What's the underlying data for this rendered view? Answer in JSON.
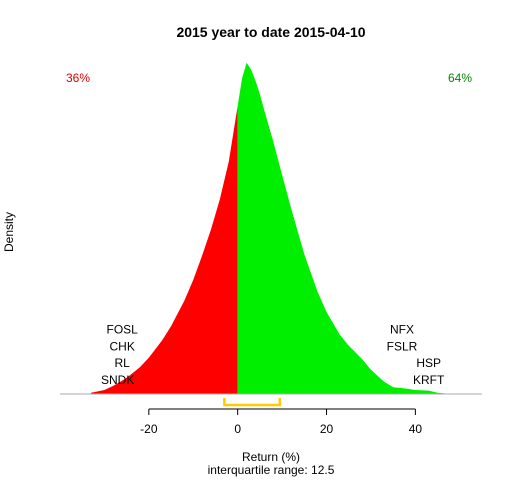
{
  "chart_data": {
    "type": "area",
    "title": "2015  year to date 2015-04-10",
    "xlabel": "Return (%)",
    "ylabel": "Density",
    "subtitle": "interquartile range: 12.5",
    "xlim": [
      -40,
      55
    ],
    "ylim": [
      0,
      0.05
    ],
    "x_ticks": [
      -20,
      0,
      20,
      40
    ],
    "x_tick_labels": [
      "-20",
      "0",
      "20",
      "40"
    ],
    "grid": false,
    "split_at": 0,
    "negative_share": "36%",
    "positive_share": "64%",
    "colors": {
      "negative": "#ff0000",
      "positive": "#00ee00",
      "negative_text": "#dd0000",
      "positive_text": "#008800",
      "iqr": "#ffcc00",
      "baseline": "#aaaaaa"
    },
    "iqr": [
      -3,
      9.5
    ],
    "density": {
      "x": [
        -33,
        -30,
        -28,
        -25,
        -22,
        -20,
        -17,
        -15,
        -12,
        -10,
        -8,
        -6,
        -4,
        -2,
        -1,
        0,
        1,
        2,
        3,
        4,
        5,
        6,
        8,
        10,
        12,
        15,
        18,
        20,
        23,
        25,
        28,
        30,
        33,
        35,
        38,
        40,
        43,
        45,
        48
      ],
      "y": [
        0.0002,
        0.0006,
        0.0012,
        0.0024,
        0.004,
        0.0054,
        0.008,
        0.0101,
        0.0139,
        0.017,
        0.0206,
        0.0245,
        0.029,
        0.0346,
        0.0387,
        0.0429,
        0.047,
        0.0493,
        0.0483,
        0.0466,
        0.0446,
        0.0422,
        0.0376,
        0.0326,
        0.0277,
        0.0208,
        0.0152,
        0.0122,
        0.0088,
        0.0072,
        0.0052,
        0.0036,
        0.0018,
        0.001,
        0.0008,
        0.0006,
        0.0005,
        0.0002,
        0
      ]
    },
    "labels_left": [
      {
        "text": "FOSL",
        "x": -26,
        "y": 0.0096
      },
      {
        "text": "CHK",
        "x": -26,
        "y": 0.0071
      },
      {
        "text": "RL",
        "x": -26,
        "y": 0.0046
      },
      {
        "text": "SNDK",
        "x": -27,
        "y": 0.0021
      }
    ],
    "labels_right": [
      {
        "text": "NFX",
        "x": 37,
        "y": 0.0096
      },
      {
        "text": "FSLR",
        "x": 37,
        "y": 0.0071
      },
      {
        "text": "HSP",
        "x": 43,
        "y": 0.0046
      },
      {
        "text": "KRFT",
        "x": 43,
        "y": 0.0021
      }
    ]
  }
}
